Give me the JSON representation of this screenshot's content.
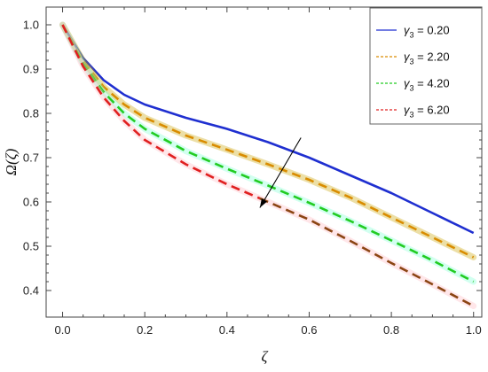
{
  "chart_data": {
    "type": "line",
    "xlabel": "ζ",
    "ylabel": "Ω(ζ)",
    "xlim": [
      -0.04,
      1.02
    ],
    "ylim": [
      0.34,
      1.04
    ],
    "xticks": [
      0.0,
      0.2,
      0.4,
      0.6,
      0.8,
      1.0
    ],
    "xtick_labels": [
      "0.0",
      "0.2",
      "0.4",
      "0.6",
      "0.8",
      "1.0"
    ],
    "yticks": [
      0.4,
      0.5,
      0.6,
      0.7,
      0.8,
      0.9,
      1.0
    ],
    "ytick_labels": [
      "0.4",
      "0.5",
      "0.6",
      "0.7",
      "0.8",
      "0.9",
      "1.0"
    ],
    "legend_position": "top-right",
    "series": [
      {
        "name": "γ3 = 0.20",
        "legend_prefix": "γ",
        "legend_sub": "3",
        "legend_suffix": " = 0.20",
        "color": "#1f2fd0",
        "style": "solid",
        "x": [
          0.0,
          0.05,
          0.1,
          0.15,
          0.2,
          0.3,
          0.4,
          0.5,
          0.6,
          0.7,
          0.8,
          0.9,
          1.0
        ],
        "y": [
          1.0,
          0.925,
          0.875,
          0.842,
          0.82,
          0.79,
          0.765,
          0.735,
          0.7,
          0.66,
          0.62,
          0.575,
          0.53
        ]
      },
      {
        "name": "γ3 = 2.20",
        "legend_prefix": "γ",
        "legend_sub": "3",
        "legend_suffix": " = 2.20",
        "color": "#d98c00",
        "highlight": "#c8a200",
        "style": "dashed",
        "x": [
          0.0,
          0.05,
          0.1,
          0.15,
          0.2,
          0.3,
          0.4,
          0.5,
          0.6,
          0.7,
          0.8,
          0.9,
          1.0
        ],
        "y": [
          1.0,
          0.918,
          0.86,
          0.82,
          0.79,
          0.75,
          0.718,
          0.685,
          0.65,
          0.61,
          0.565,
          0.52,
          0.475
        ]
      },
      {
        "name": "γ3 = 4.20",
        "legend_prefix": "γ",
        "legend_sub": "3",
        "legend_suffix": " = 4.20",
        "color": "#22cc22",
        "highlight": "#7fffd4",
        "style": "dashed",
        "x": [
          0.0,
          0.05,
          0.1,
          0.15,
          0.2,
          0.3,
          0.4,
          0.5,
          0.6,
          0.7,
          0.8,
          0.9,
          1.0
        ],
        "y": [
          1.0,
          0.912,
          0.848,
          0.8,
          0.765,
          0.715,
          0.675,
          0.637,
          0.598,
          0.557,
          0.513,
          0.468,
          0.42
        ]
      },
      {
        "name": "γ3 = 6.20",
        "legend_prefix": "γ",
        "legend_sub": "3",
        "legend_suffix": " = 6.20",
        "color": "#e02020",
        "color_after": "#8b4513",
        "color_change_x": 0.48,
        "highlight": "#ffb6c1",
        "style": "dashed",
        "x": [
          0.0,
          0.05,
          0.1,
          0.15,
          0.2,
          0.3,
          0.4,
          0.5,
          0.6,
          0.7,
          0.8,
          0.9,
          1.0
        ],
        "y": [
          1.0,
          0.906,
          0.836,
          0.783,
          0.74,
          0.685,
          0.64,
          0.6,
          0.56,
          0.512,
          0.462,
          0.414,
          0.365
        ]
      }
    ],
    "arrow": {
      "from": [
        0.58,
        0.745
      ],
      "to": [
        0.48,
        0.587
      ],
      "color": "#000000"
    }
  }
}
